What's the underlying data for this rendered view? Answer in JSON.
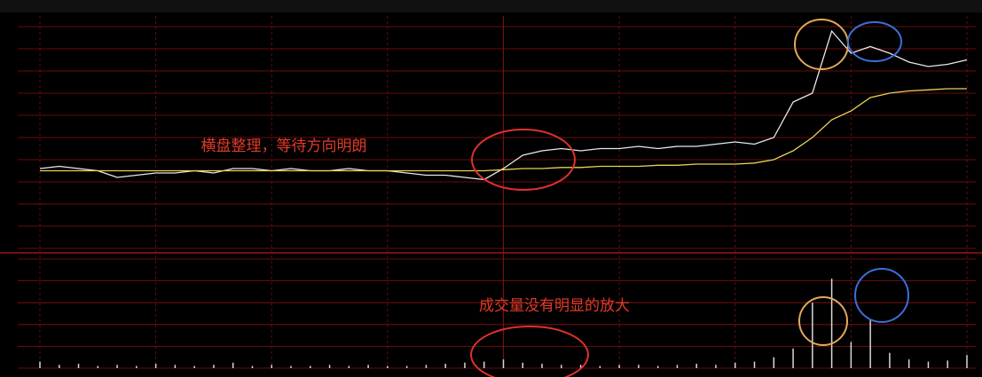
{
  "chart_data": {
    "type": "line",
    "annotations": [
      "横盘整理，等待方向明朗",
      "成交量没有明显的放大"
    ],
    "series": [
      {
        "color": "#e8e8e8",
        "values": [
          36,
          37,
          36,
          35,
          32,
          33,
          34,
          34,
          35,
          34,
          36,
          36,
          35,
          36,
          35,
          35,
          36,
          35,
          35,
          34,
          33,
          33,
          32,
          31,
          36,
          42,
          44,
          45,
          44,
          45,
          45,
          46,
          45,
          46,
          46,
          47,
          48,
          47,
          50,
          66,
          70,
          98,
          88,
          91,
          88,
          84,
          82,
          83,
          85
        ]
      },
      {
        "color": "#e8d25a",
        "values": [
          35,
          35,
          35,
          35,
          35,
          35,
          35,
          35,
          35,
          35,
          35,
          35,
          35,
          35,
          35,
          35,
          35,
          35,
          35,
          35,
          35,
          35,
          35,
          35,
          35.5,
          36,
          36,
          36.5,
          36.5,
          37,
          37,
          37,
          37.5,
          37.5,
          38,
          38,
          38,
          38.5,
          40,
          44,
          50,
          58,
          62,
          68,
          70,
          71,
          71.5,
          72,
          72
        ]
      }
    ],
    "ylim": [
      0,
      100
    ],
    "yticks": [
      0,
      10,
      20,
      30,
      40,
      50,
      60,
      70,
      80,
      90,
      100
    ],
    "volume": {
      "color": "#d8d8d8",
      "values": [
        6,
        3,
        4,
        2,
        3,
        2,
        4,
        3,
        2,
        3,
        5,
        2,
        3,
        2,
        2,
        3,
        2,
        3,
        2,
        2,
        3,
        4,
        5,
        6,
        8,
        5,
        4,
        3,
        3,
        2,
        3,
        3,
        2,
        3,
        4,
        3,
        5,
        6,
        10,
        18,
        60,
        82,
        24,
        45,
        14,
        8,
        6,
        7,
        12
      ],
      "ylim": [
        0,
        100
      ],
      "yticks": [
        0,
        20,
        40,
        60,
        80,
        100
      ]
    },
    "grid": true
  }
}
